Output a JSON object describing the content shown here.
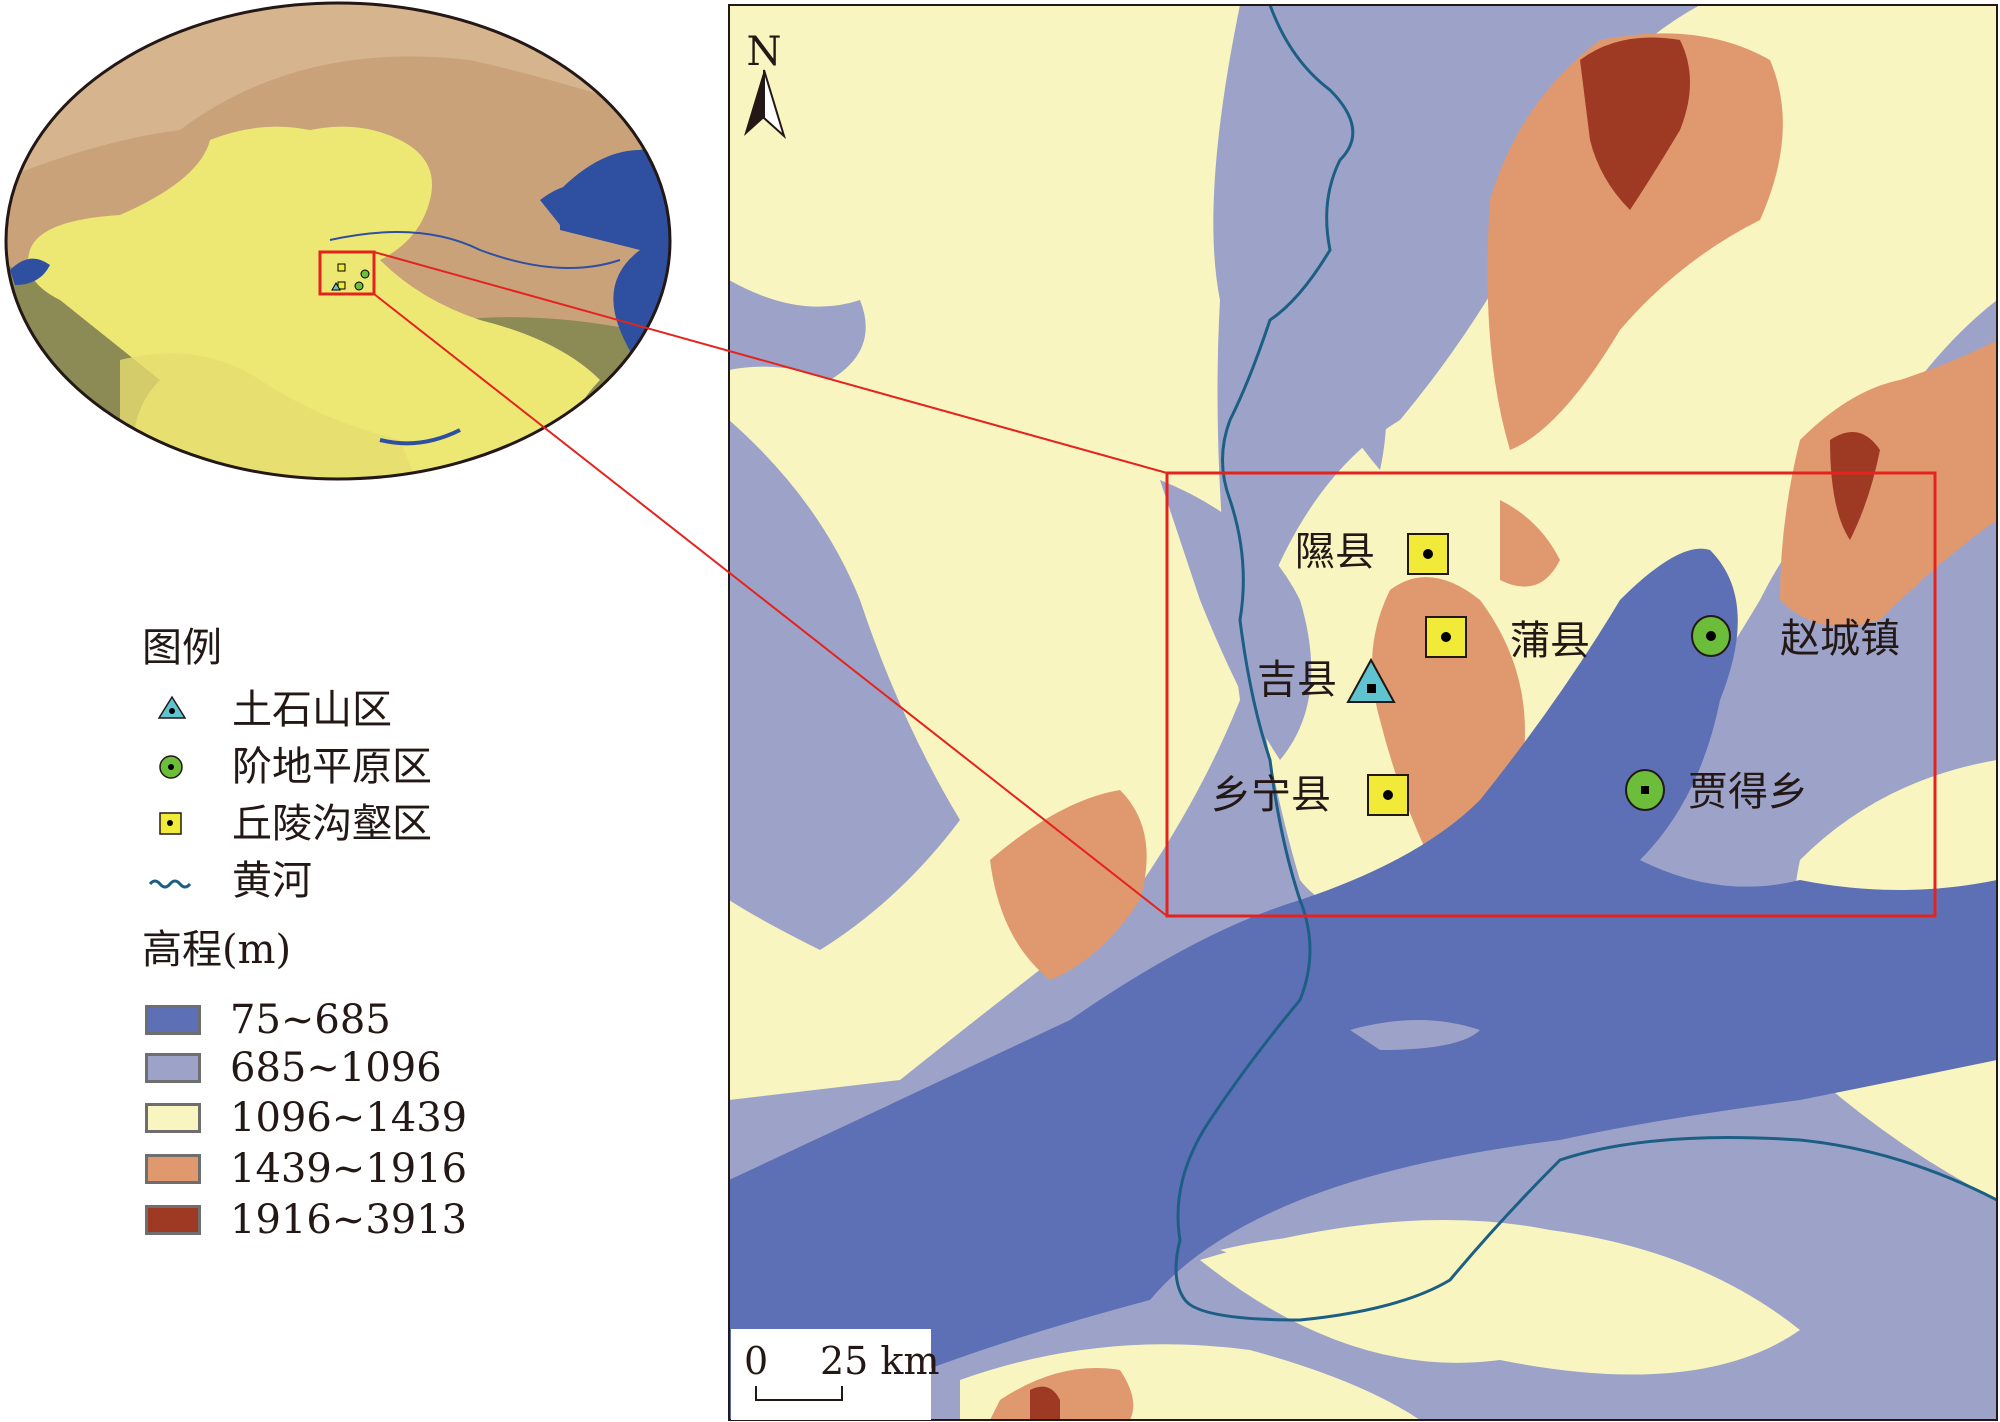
{
  "legend": {
    "title": "图例",
    "items": [
      {
        "label": "土石山区",
        "icon": "triangle-dot-icon",
        "color": "#5fc4d0"
      },
      {
        "label": "阶地平原区",
        "icon": "circle-dot-icon",
        "color": "#6bbd3a"
      },
      {
        "label": "丘陵沟壑区",
        "icon": "square-dot-icon",
        "color": "#f2ea38"
      },
      {
        "label": "黄河",
        "icon": "river-line-icon",
        "color": "#1d5f84"
      }
    ],
    "elevation_title": "高程(m)",
    "elevation_classes": [
      {
        "label": "75~685",
        "color": "#5d70b6"
      },
      {
        "label": "685~1096",
        "color": "#9da3c8"
      },
      {
        "label": "1096~1439",
        "color": "#f8f5c0"
      },
      {
        "label": "1439~1916",
        "color": "#e0986f"
      },
      {
        "label": "1916~3913",
        "color": "#9e3a24"
      }
    ]
  },
  "map": {
    "north_label": "N",
    "scale_bar": {
      "start": "0",
      "end": "25 km"
    },
    "sites": [
      {
        "name": "隰县",
        "type": "丘陵沟壑区"
      },
      {
        "name": "蒲县",
        "type": "丘陵沟壑区"
      },
      {
        "name": "赵城镇",
        "type": "阶地平原区"
      },
      {
        "name": "吉县",
        "type": "土石山区"
      },
      {
        "name": "乡宁县",
        "type": "丘陵沟壑区"
      },
      {
        "name": "贾得乡",
        "type": "阶地平原区"
      }
    ],
    "highlight_color": "#e5231e"
  }
}
